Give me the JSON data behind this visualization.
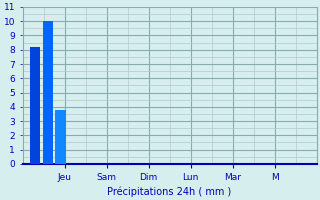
{
  "bar_values": [
    8.2,
    10.0,
    3.8
  ],
  "bar_colors": [
    "#0044dd",
    "#0066ff",
    "#1188ff"
  ],
  "bar_positions": [
    0.3,
    0.6,
    0.9
  ],
  "bar_width": 0.25,
  "ylim": [
    0,
    11
  ],
  "yticks": [
    0,
    1,
    2,
    3,
    4,
    5,
    6,
    7,
    8,
    9,
    10,
    11
  ],
  "xlim": [
    0,
    7
  ],
  "xlabel": "Précipitations 24h ( mm )",
  "background_color": "#d6eeee",
  "grid_color": "#b0c9c9",
  "grid_color_dark": "#8aabab",
  "tick_color": "#0000bb",
  "label_color": "#0000bb",
  "axis_color": "#0000bb",
  "x_day_labels": [
    "Jeu",
    "Sam",
    "Dim",
    "Lun",
    "Mar",
    "M"
  ],
  "x_day_positions": [
    1.0,
    2.0,
    3.0,
    4.0,
    5.0,
    6.0
  ],
  "minor_grid_spacing_x": 0.5,
  "minor_grid_spacing_y": 0.5
}
